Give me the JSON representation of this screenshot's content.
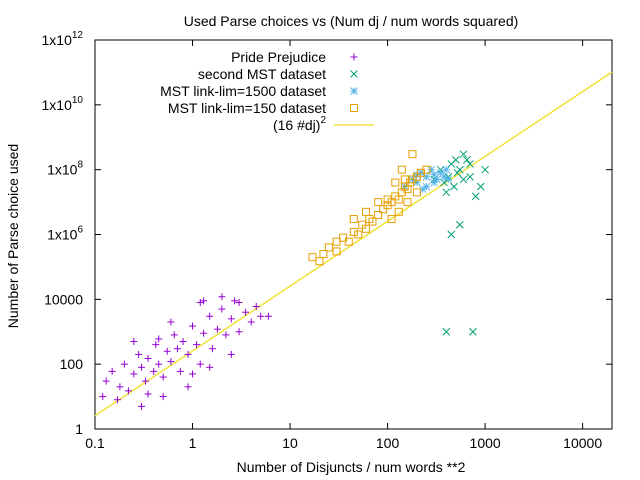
{
  "chart_data": {
    "type": "scatter",
    "title": "Used Parse choices vs (Num dj / num words squared)",
    "xlabel": "Number of Disjuncts / num words **2",
    "ylabel": "Number of Parse choice used",
    "x_scale": "log",
    "y_scale": "log",
    "xlim": [
      0.1,
      20000
    ],
    "ylim": [
      1,
      1000000000000.0
    ],
    "grid": false,
    "legend_position": "top-right",
    "x_ticks": [
      {
        "value": 0.1,
        "label": "0.1"
      },
      {
        "value": 1,
        "label": "1"
      },
      {
        "value": 10,
        "label": "10"
      },
      {
        "value": 100,
        "label": "100"
      },
      {
        "value": 1000,
        "label": "1000"
      },
      {
        "value": 10000,
        "label": "10000"
      }
    ],
    "y_ticks": [
      {
        "value": 1,
        "base": "1",
        "exp": ""
      },
      {
        "value": 100,
        "base": "100",
        "exp": ""
      },
      {
        "value": 10000,
        "base": "10000",
        "exp": ""
      },
      {
        "value": 1000000,
        "base": "1x10",
        "exp": "6"
      },
      {
        "value": 100000000,
        "base": "1x10",
        "exp": "8"
      },
      {
        "value": 10000000000,
        "base": "1x10",
        "exp": "10"
      },
      {
        "value": 1000000000000,
        "base": "1x10",
        "exp": "12"
      }
    ],
    "series": [
      {
        "name": "Pride Prejudice",
        "marker": "plus",
        "color": "#9400d3",
        "points": [
          [
            0.13,
            30
          ],
          [
            0.15,
            60
          ],
          [
            0.18,
            20
          ],
          [
            0.2,
            100
          ],
          [
            0.22,
            15
          ],
          [
            0.25,
            50
          ],
          [
            0.28,
            200
          ],
          [
            0.3,
            80
          ],
          [
            0.33,
            30
          ],
          [
            0.35,
            150
          ],
          [
            0.4,
            60
          ],
          [
            0.42,
            400
          ],
          [
            0.45,
            100
          ],
          [
            0.5,
            40
          ],
          [
            0.55,
            250
          ],
          [
            0.6,
            120
          ],
          [
            0.65,
            800
          ],
          [
            0.7,
            300
          ],
          [
            0.75,
            60
          ],
          [
            0.8,
            500
          ],
          [
            0.9,
            200
          ],
          [
            1.0,
            1500
          ],
          [
            1.1,
            400
          ],
          [
            1.2,
            100
          ],
          [
            1.3,
            900
          ],
          [
            1.5,
            3000
          ],
          [
            1.6,
            300
          ],
          [
            1.8,
            1200
          ],
          [
            2.0,
            5000
          ],
          [
            2.2,
            800
          ],
          [
            2.5,
            2500
          ],
          [
            3.0,
            1000
          ],
          [
            3.0,
            8000
          ],
          [
            3.5,
            4000
          ],
          [
            4.0,
            2000
          ],
          [
            4.5,
            6000
          ],
          [
            5.0,
            3000
          ],
          [
            6.0,
            3000
          ],
          [
            0.12,
            10
          ],
          [
            0.17,
            8
          ],
          [
            0.3,
            5
          ],
          [
            0.5,
            10
          ],
          [
            1.0,
            50
          ],
          [
            1.5,
            80
          ],
          [
            2.5,
            200
          ],
          [
            0.6,
            2000
          ],
          [
            1.2,
            8000
          ],
          [
            2.0,
            12000
          ],
          [
            0.9,
            20
          ],
          [
            0.35,
            12
          ],
          [
            1.3,
            9000
          ],
          [
            2.7,
            9000
          ],
          [
            0.25,
            500
          ],
          [
            0.45,
            600
          ]
        ]
      },
      {
        "name": "second MST dataset",
        "marker": "cross",
        "color": "#009e73",
        "points": [
          [
            300,
            50000000.0
          ],
          [
            350,
            100000000.0
          ],
          [
            400,
            20000000.0
          ],
          [
            420,
            60000000.0
          ],
          [
            450,
            150000000.0
          ],
          [
            480,
            30000000.0
          ],
          [
            500,
            200000000.0
          ],
          [
            520,
            80000000.0
          ],
          [
            550,
            100000000.0
          ],
          [
            600,
            50000000.0
          ],
          [
            650,
            200000000.0
          ],
          [
            700,
            150000000.0
          ],
          [
            450,
            1000000.0
          ],
          [
            550,
            2000000.0
          ],
          [
            900,
            30000000.0
          ],
          [
            1000,
            100000000.0
          ],
          [
            800,
            15000000.0
          ],
          [
            400,
            1000
          ],
          [
            750,
            1000
          ],
          [
            600,
            300000000.0
          ],
          [
            380,
            40000000.0
          ],
          [
            700,
            60000000.0
          ]
        ]
      },
      {
        "name": "MST link-lim=1500 dataset",
        "marker": "star",
        "color": "#56b4e9",
        "points": [
          [
            150,
            30000000.0
          ],
          [
            180,
            50000000.0
          ],
          [
            200,
            40000000.0
          ],
          [
            220,
            80000000.0
          ],
          [
            250,
            60000000.0
          ],
          [
            280,
            100000000.0
          ],
          [
            300,
            70000000.0
          ],
          [
            320,
            50000000.0
          ],
          [
            350,
            80000000.0
          ],
          [
            380,
            60000000.0
          ],
          [
            400,
            100000000.0
          ],
          [
            250,
            30000000.0
          ],
          [
            300,
            40000000.0
          ],
          [
            420,
            50000000.0
          ],
          [
            200,
            70000000.0
          ],
          [
            230,
            25000000.0
          ]
        ]
      },
      {
        "name": "MST link-lim=150 dataset",
        "marker": "square",
        "color": "#e69f00",
        "points": [
          [
            17,
            200000.0
          ],
          [
            20,
            150000.0
          ],
          [
            22,
            250000.0
          ],
          [
            25,
            400000.0
          ],
          [
            30,
            300000.0
          ],
          [
            35,
            800000.0
          ],
          [
            40,
            600000.0
          ],
          [
            45,
            1200000.0
          ],
          [
            50,
            1000000.0
          ],
          [
            55,
            2000000.0
          ],
          [
            60,
            1500000.0
          ],
          [
            65,
            3000000.0
          ],
          [
            70,
            2500000.0
          ],
          [
            80,
            4000000.0
          ],
          [
            90,
            6000000.0
          ],
          [
            100,
            8000000.0
          ],
          [
            110,
            10000000.0
          ],
          [
            120,
            15000000.0
          ],
          [
            130,
            12000000.0
          ],
          [
            140,
            20000000.0
          ],
          [
            150,
            30000000.0
          ],
          [
            160,
            25000000.0
          ],
          [
            170,
            40000000.0
          ],
          [
            180,
            50000000.0
          ],
          [
            200,
            60000000.0
          ],
          [
            220,
            80000000.0
          ],
          [
            250,
            100000000.0
          ],
          [
            180,
            300000000.0
          ],
          [
            140,
            100000000.0
          ],
          [
            60,
            5000000.0
          ],
          [
            45,
            3000000.0
          ],
          [
            80,
            10000000.0
          ],
          [
            100,
            12000000.0
          ],
          [
            130,
            5000000.0
          ],
          [
            160,
            10000000.0
          ],
          [
            110,
            3000000.0
          ],
          [
            200,
            20000000.0
          ],
          [
            30,
            600000.0
          ],
          [
            150,
            50000000.0
          ],
          [
            120,
            40000000.0
          ]
        ]
      }
    ],
    "fit_line": {
      "name": "(16 #dj)",
      "name_exp": "2",
      "color": "#f0e442",
      "formula": "y = (16 x)^2",
      "x_range": [
        0.1,
        20000
      ]
    }
  }
}
